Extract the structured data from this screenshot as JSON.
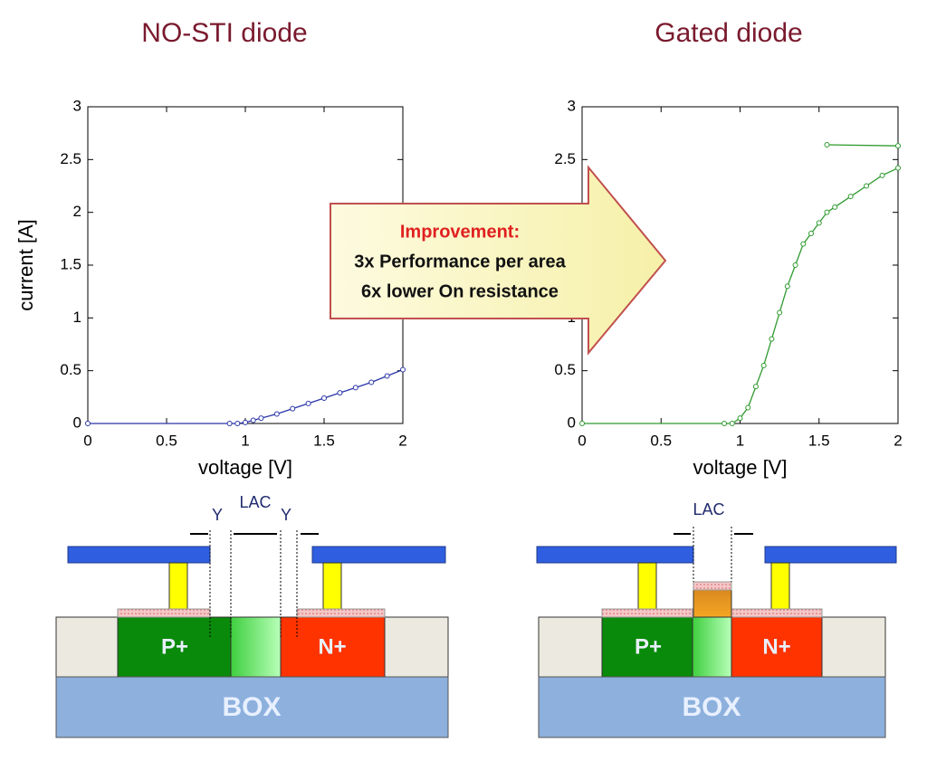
{
  "chart_data": [
    {
      "type": "line",
      "title": "NO-STI diode",
      "x_label": "voltage [V]",
      "y_label": "current [A]",
      "xlim": [
        0,
        2
      ],
      "ylim": [
        0,
        3
      ],
      "xticks": [
        0,
        0.5,
        1,
        1.5,
        2
      ],
      "yticks": [
        0,
        0.5,
        1,
        1.5,
        2,
        2.5,
        3
      ],
      "series": [
        {
          "color": "#2a35a8",
          "x": [
            0,
            0.9,
            0.95,
            1.0,
            1.05,
            1.1,
            1.2,
            1.3,
            1.4,
            1.5,
            1.6,
            1.7,
            1.8,
            1.9,
            2.0
          ],
          "values": [
            0,
            0,
            0,
            0.01,
            0.03,
            0.05,
            0.09,
            0.14,
            0.19,
            0.24,
            0.29,
            0.34,
            0.39,
            0.45,
            0.51
          ]
        }
      ]
    },
    {
      "type": "line",
      "title": "Gated diode",
      "x_label": "voltage [V]",
      "xlim": [
        0,
        2
      ],
      "ylim": [
        0,
        3
      ],
      "xticks": [
        0,
        0.5,
        1,
        1.5,
        2
      ],
      "yticks": [
        0,
        0.5,
        1,
        1.5,
        2,
        2.5,
        3
      ],
      "series": [
        {
          "color": "#2e9a2e",
          "x": [
            0,
            0.9,
            0.95,
            1.0,
            1.05,
            1.1,
            1.15,
            1.2,
            1.25,
            1.3,
            1.35,
            1.4,
            1.45,
            1.5,
            1.55,
            1.6,
            1.7,
            1.8,
            1.9,
            2.0
          ],
          "values": [
            0,
            0,
            0,
            0.05,
            0.15,
            0.35,
            0.55,
            0.8,
            1.05,
            1.3,
            1.5,
            1.7,
            1.8,
            1.9,
            2.0,
            2.05,
            2.15,
            2.25,
            2.35,
            2.42
          ]
        },
        {
          "color": "#2e9a2e",
          "x": [
            1.55,
            2.0
          ],
          "values": [
            2.64,
            2.63
          ]
        }
      ]
    }
  ],
  "callout": {
    "title": "Improvement:",
    "lines": [
      "3x Performance per area",
      "6x lower On resistance"
    ]
  },
  "diagrams": [
    {
      "y_left": "Y",
      "lac": "LAC",
      "y_right": "Y",
      "p": "P+",
      "n": "N+",
      "box": "BOX"
    },
    {
      "lac": "LAC",
      "p": "P+",
      "n": "N+",
      "box": "BOX"
    }
  ]
}
